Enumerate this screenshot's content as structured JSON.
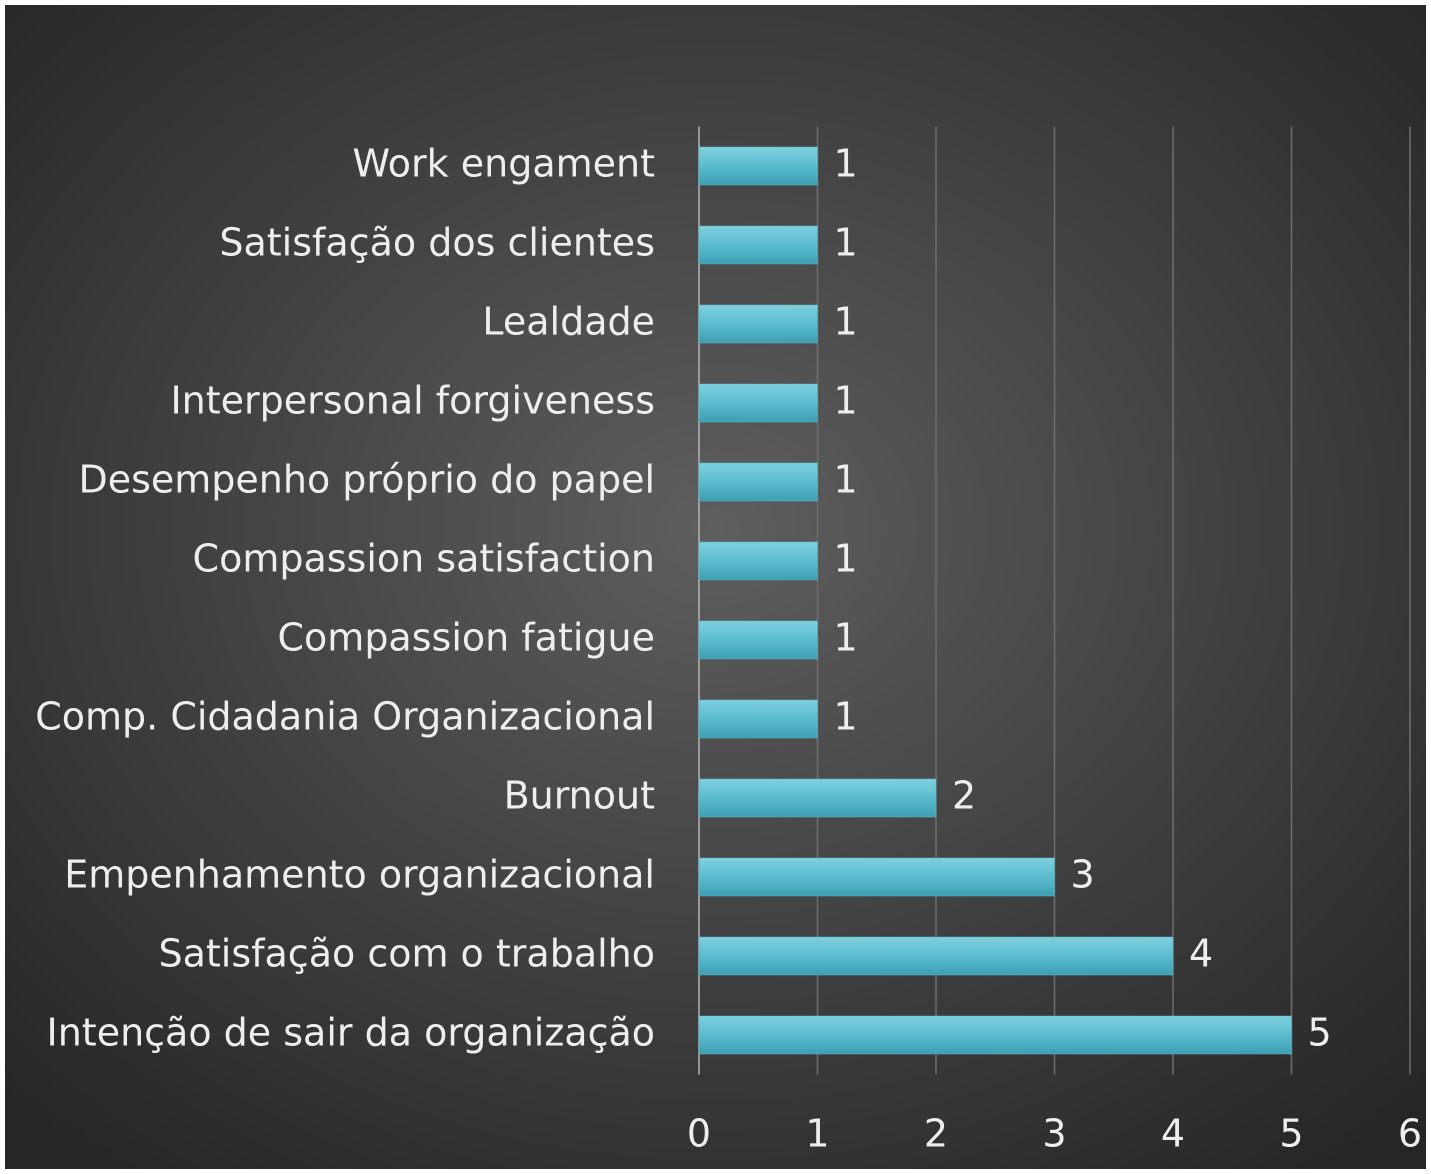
{
  "chart_data": {
    "type": "bar",
    "orientation": "horizontal",
    "categories": [
      "Work engament",
      "Satisfação dos clientes",
      "Lealdade",
      "Interpersonal forgiveness",
      "Desempenho próprio do papel",
      "Compassion satisfaction",
      "Compassion fatigue",
      "Comp. Cidadania Organizacional",
      "Burnout",
      "Empenhamento organizacional",
      "Satisfação com o trabalho",
      "Intenção de sair da organização"
    ],
    "values": [
      1,
      1,
      1,
      1,
      1,
      1,
      1,
      1,
      2,
      3,
      4,
      5
    ],
    "color": "#5bbccf",
    "xlim": [
      0,
      6
    ],
    "xticks": [
      0,
      1,
      2,
      3,
      4,
      5,
      6
    ],
    "grid": true
  }
}
